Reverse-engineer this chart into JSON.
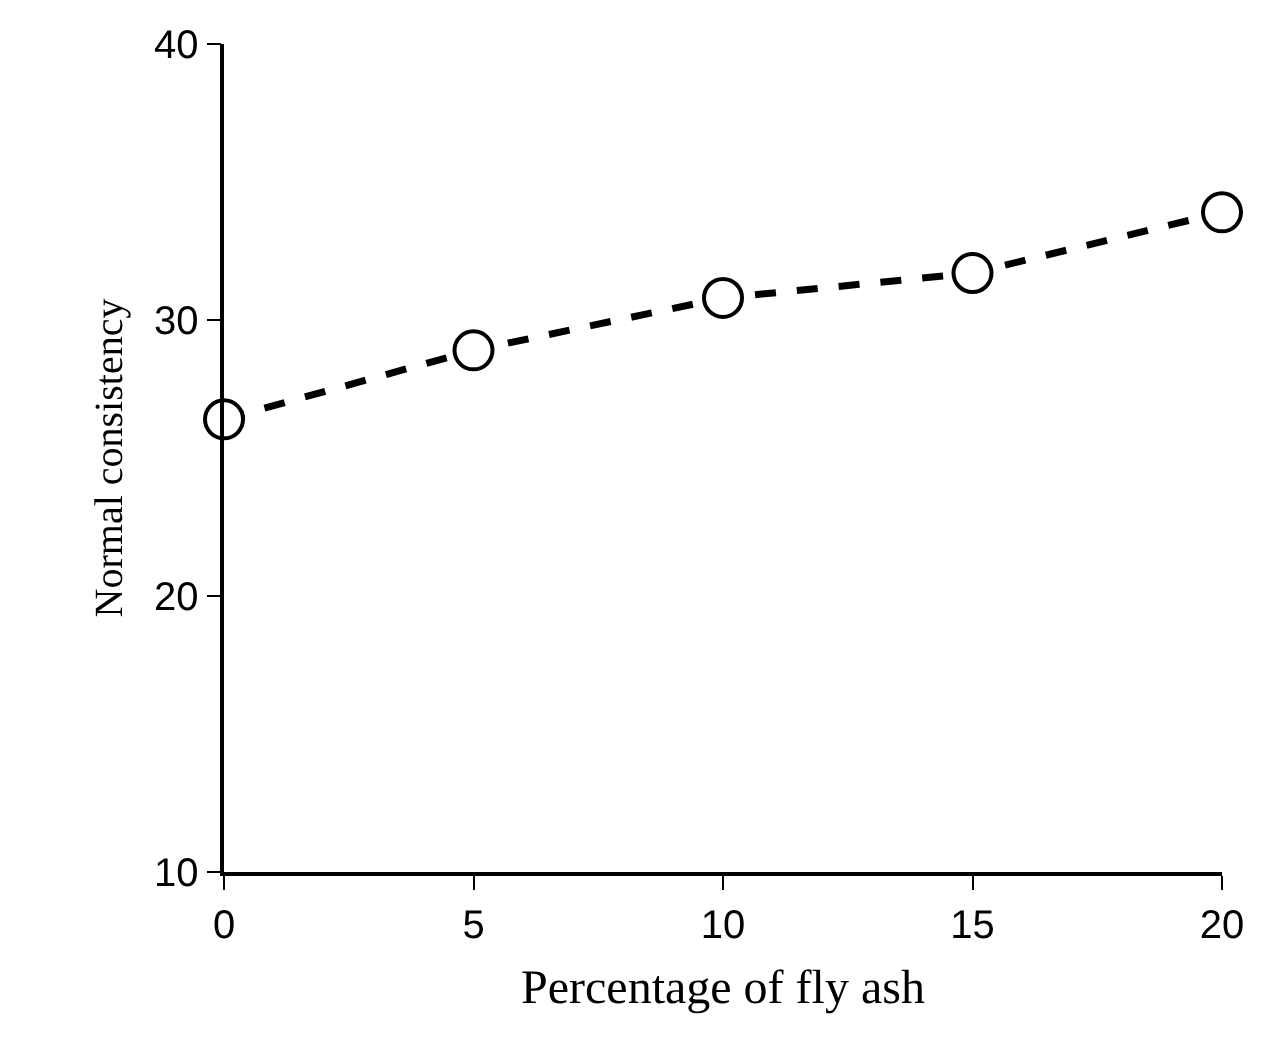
{
  "chart_data": {
    "type": "line",
    "xlabel": "Percentage of fly ash",
    "ylabel": "Normal consistency",
    "x": [
      0,
      5,
      10,
      15,
      20
    ],
    "series": [
      {
        "color": "#000000",
        "values": [
          26.4,
          28.9,
          30.8,
          31.7,
          33.9
        ]
      }
    ],
    "xlim": [
      0,
      20
    ],
    "xticks": [
      0,
      5,
      10,
      15,
      20
    ],
    "ylim": [
      10,
      40
    ],
    "yticks": [
      10,
      20,
      30,
      40
    ],
    "marker": "circle",
    "line_style": "dashed"
  }
}
